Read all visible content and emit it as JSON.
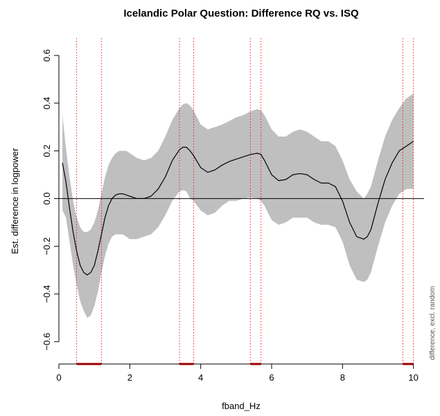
{
  "chart_data": {
    "type": "line",
    "title": "Icelandic Polar Question: Difference RQ vs. ISQ",
    "xlabel": "fband_Hz",
    "ylabel": "Est. difference in logpower",
    "side_note": "difference, excl. random",
    "xlim": [
      0,
      10.3
    ],
    "ylim": [
      -0.65,
      0.6
    ],
    "x_ticks": [
      0,
      2,
      4,
      6,
      8,
      10
    ],
    "x_tick_labels": [
      "0",
      "2",
      "4",
      "6",
      "8",
      "10"
    ],
    "y_ticks": [
      -0.6,
      -0.4,
      -0.2,
      0.0,
      0.2,
      0.4,
      0.6
    ],
    "y_tick_labels": [
      "−0.6",
      "−0.4",
      "−0.2",
      "0.0",
      "0.2",
      "0.4",
      "0.6"
    ],
    "reference_line_y": 0,
    "colors": {
      "line": "#000000",
      "band": "#bfbfbf",
      "significance": "#ff0000"
    },
    "series": [
      {
        "x": [
          0.1,
          0.2,
          0.3,
          0.4,
          0.5,
          0.6,
          0.7,
          0.8,
          0.9,
          1.0,
          1.1,
          1.2,
          1.3,
          1.4,
          1.5,
          1.6,
          1.7,
          1.8,
          1.9,
          2.0,
          2.2,
          2.4,
          2.6,
          2.8,
          3.0,
          3.2,
          3.4,
          3.5,
          3.6,
          3.7,
          3.8,
          4.0,
          4.2,
          4.4,
          4.6,
          4.8,
          5.0,
          5.2,
          5.4,
          5.6,
          5.7,
          5.8,
          6.0,
          6.2,
          6.4,
          6.6,
          6.8,
          7.0,
          7.2,
          7.4,
          7.6,
          7.8,
          8.0,
          8.2,
          8.4,
          8.6,
          8.7,
          8.8,
          9.0,
          9.2,
          9.4,
          9.6,
          9.8,
          10.0
        ],
        "y": [
          0.15,
          0.07,
          -0.04,
          -0.14,
          -0.22,
          -0.28,
          -0.31,
          -0.32,
          -0.31,
          -0.28,
          -0.22,
          -0.15,
          -0.08,
          -0.03,
          0.0,
          0.015,
          0.02,
          0.02,
          0.015,
          0.01,
          0.0,
          0.0,
          0.01,
          0.04,
          0.09,
          0.16,
          0.205,
          0.215,
          0.215,
          0.2,
          0.18,
          0.13,
          0.11,
          0.12,
          0.14,
          0.155,
          0.165,
          0.175,
          0.185,
          0.19,
          0.185,
          0.16,
          0.1,
          0.075,
          0.08,
          0.1,
          0.105,
          0.1,
          0.08,
          0.065,
          0.065,
          0.05,
          -0.01,
          -0.1,
          -0.16,
          -0.17,
          -0.16,
          -0.13,
          -0.02,
          0.08,
          0.15,
          0.2,
          0.22,
          0.24
        ],
        "upper": [
          0.35,
          0.21,
          0.09,
          -0.01,
          -0.08,
          -0.12,
          -0.14,
          -0.14,
          -0.13,
          -0.1,
          -0.05,
          0.02,
          0.09,
          0.14,
          0.17,
          0.19,
          0.2,
          0.2,
          0.2,
          0.19,
          0.17,
          0.16,
          0.17,
          0.2,
          0.26,
          0.33,
          0.38,
          0.395,
          0.4,
          0.39,
          0.37,
          0.31,
          0.29,
          0.3,
          0.31,
          0.325,
          0.34,
          0.35,
          0.365,
          0.375,
          0.37,
          0.35,
          0.29,
          0.26,
          0.26,
          0.28,
          0.29,
          0.28,
          0.26,
          0.24,
          0.24,
          0.22,
          0.16,
          0.08,
          0.03,
          0.0,
          0.02,
          0.05,
          0.16,
          0.26,
          0.33,
          0.38,
          0.42,
          0.44
        ],
        "lower": [
          -0.05,
          -0.08,
          -0.18,
          -0.28,
          -0.36,
          -0.43,
          -0.47,
          -0.5,
          -0.49,
          -0.45,
          -0.39,
          -0.31,
          -0.24,
          -0.19,
          -0.16,
          -0.15,
          -0.15,
          -0.15,
          -0.16,
          -0.17,
          -0.17,
          -0.16,
          -0.15,
          -0.12,
          -0.07,
          -0.01,
          0.03,
          0.035,
          0.03,
          0.0,
          -0.01,
          -0.05,
          -0.07,
          -0.06,
          -0.03,
          -0.01,
          -0.01,
          0.0,
          0.005,
          0.0,
          -0.01,
          -0.03,
          -0.09,
          -0.11,
          -0.1,
          -0.08,
          -0.08,
          -0.08,
          -0.1,
          -0.11,
          -0.11,
          -0.12,
          -0.18,
          -0.28,
          -0.34,
          -0.35,
          -0.34,
          -0.31,
          -0.2,
          -0.1,
          -0.03,
          0.02,
          0.04,
          0.04
        ]
      }
    ],
    "significant_intervals": [
      [
        0.5,
        1.2
      ],
      [
        3.4,
        3.8
      ],
      [
        5.4,
        5.7
      ],
      [
        9.7,
        10.0
      ]
    ]
  }
}
